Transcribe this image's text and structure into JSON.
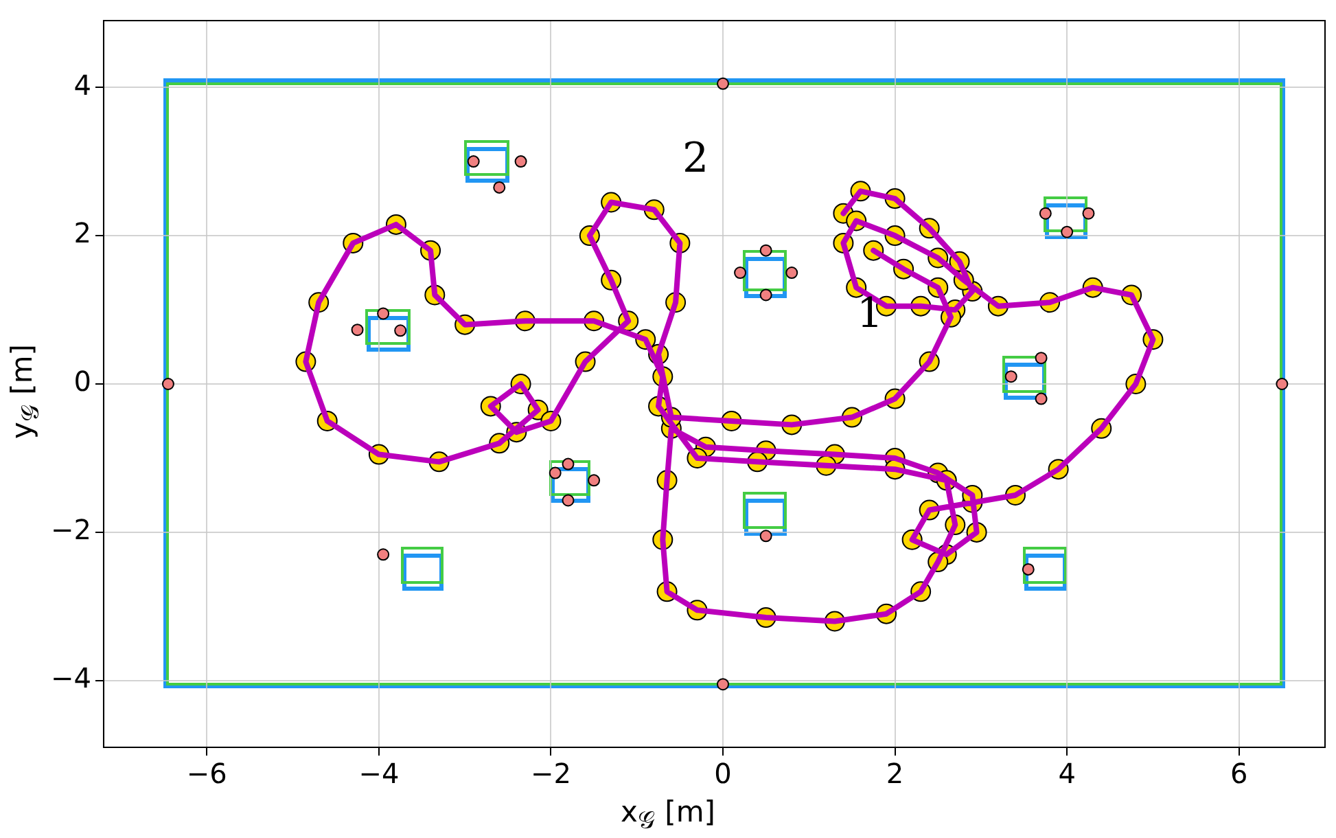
{
  "chart_data": {
    "type": "scatter",
    "xlabel": "x$_{𝒢}$ [m]",
    "ylabel": "y$_{𝒢}$ [m]",
    "xlim": [
      -7.2,
      7.0
    ],
    "ylim": [
      -4.9,
      4.9
    ],
    "xticks": [
      {
        "value": -6,
        "label": "−6"
      },
      {
        "value": -4,
        "label": "−4"
      },
      {
        "value": -2,
        "label": "−2"
      },
      0,
      2,
      4,
      6
    ],
    "yticks": [
      {
        "value": -4,
        "label": "−4"
      },
      {
        "value": -2,
        "label": "−2"
      },
      0,
      2,
      4
    ],
    "grid": true,
    "legend": false,
    "annotations": [
      "1",
      "2"
    ],
    "series": [
      {
        "type": "scatter",
        "marker": "circle",
        "color": "#ffd700",
        "x": [
          1.4,
          1.6,
          2.0,
          2.4,
          2.75,
          2.9,
          2.7,
          2.3,
          1.9,
          1.55,
          1.4,
          1.55,
          2.0,
          2.5,
          2.8,
          3.2,
          3.8,
          4.3,
          4.75,
          5.0,
          4.8,
          4.4,
          3.9,
          3.4,
          2.9,
          2.4,
          2.2,
          2.6,
          2.95,
          2.9,
          2.5,
          2.0,
          1.3,
          0.5,
          -0.2,
          -0.6,
          -0.65,
          -0.7,
          -0.65,
          -0.3,
          0.5,
          1.3,
          1.9,
          2.3,
          2.5,
          2.7,
          2.6,
          2.0,
          1.2,
          0.4,
          -0.3,
          -0.75,
          -0.7,
          -0.9,
          -1.5,
          -2.3,
          -3.0,
          -3.35,
          -3.4,
          -3.8,
          -4.3,
          -4.7,
          -4.85,
          -4.6,
          -4.0,
          -3.3,
          -2.6,
          -2.15,
          -2.35,
          -2.7,
          -2.4,
          -2.0,
          -1.6,
          -1.1,
          -1.3,
          -1.55,
          -1.3,
          -0.8,
          -0.5,
          -0.55,
          -0.75,
          -0.6,
          0.1,
          0.8,
          1.5,
          2.0,
          2.4,
          2.65,
          2.5,
          2.1,
          1.75
        ],
        "values": [
          2.3,
          2.6,
          2.5,
          2.1,
          1.65,
          1.25,
          1.0,
          1.05,
          1.05,
          1.3,
          1.9,
          2.2,
          2.0,
          1.7,
          1.4,
          1.05,
          1.1,
          1.3,
          1.2,
          0.6,
          0.0,
          -0.6,
          -1.15,
          -1.5,
          -1.6,
          -1.7,
          -2.1,
          -2.3,
          -2.0,
          -1.5,
          -1.2,
          -1.0,
          -0.95,
          -0.9,
          -0.85,
          -0.6,
          -1.3,
          -2.1,
          -2.8,
          -3.05,
          -3.15,
          -3.2,
          -3.1,
          -2.8,
          -2.4,
          -1.9,
          -1.3,
          -1.15,
          -1.1,
          -1.05,
          -1.0,
          -0.3,
          0.1,
          0.6,
          0.85,
          0.85,
          0.8,
          1.2,
          1.8,
          2.15,
          1.9,
          1.1,
          0.3,
          -0.5,
          -0.95,
          -1.05,
          -0.8,
          -0.35,
          0.0,
          -0.3,
          -0.65,
          -0.5,
          0.3,
          0.85,
          1.4,
          2.0,
          2.45,
          2.35,
          1.9,
          1.1,
          0.4,
          -0.45,
          -0.5,
          -0.55,
          -0.45,
          -0.2,
          0.3,
          0.9,
          1.3,
          1.55,
          1.8
        ]
      },
      {
        "type": "line",
        "marker": "none",
        "color": "#bb00bb",
        "x": [
          1.4,
          1.6,
          2.0,
          2.4,
          2.75,
          2.9,
          2.7,
          2.3,
          1.9,
          1.55,
          1.4,
          1.55,
          2.0,
          2.5,
          2.8,
          3.2,
          3.8,
          4.3,
          4.75,
          5.0,
          4.8,
          4.4,
          3.9,
          3.4,
          2.9,
          2.4,
          2.2,
          2.6,
          2.95,
          2.9,
          2.5,
          2.0,
          1.3,
          0.5,
          -0.2,
          -0.6,
          -0.65,
          -0.7,
          -0.65,
          -0.3,
          0.5,
          1.3,
          1.9,
          2.3,
          2.5,
          2.7,
          2.6,
          2.0,
          1.2,
          0.4,
          -0.3,
          -0.75,
          -0.7,
          -0.9,
          -1.5,
          -2.3,
          -3.0,
          -3.35,
          -3.4,
          -3.8,
          -4.3,
          -4.7,
          -4.85,
          -4.6,
          -4.0,
          -3.3,
          -2.6,
          -2.15,
          -2.35,
          -2.7,
          -2.4,
          -2.0,
          -1.6,
          -1.1,
          -1.3,
          -1.55,
          -1.3,
          -0.8,
          -0.5,
          -0.55,
          -0.75,
          -0.6,
          0.1,
          0.8,
          1.5,
          2.0,
          2.4,
          2.65,
          2.5,
          2.1,
          1.75
        ],
        "values": [
          2.3,
          2.6,
          2.5,
          2.1,
          1.65,
          1.25,
          1.0,
          1.05,
          1.05,
          1.3,
          1.9,
          2.2,
          2.0,
          1.7,
          1.4,
          1.05,
          1.1,
          1.3,
          1.2,
          0.6,
          0.0,
          -0.6,
          -1.15,
          -1.5,
          -1.6,
          -1.7,
          -2.1,
          -2.3,
          -2.0,
          -1.5,
          -1.2,
          -1.0,
          -0.95,
          -0.9,
          -0.85,
          -0.6,
          -1.3,
          -2.1,
          -2.8,
          -3.05,
          -3.15,
          -3.2,
          -3.1,
          -2.8,
          -2.4,
          -1.9,
          -1.3,
          -1.15,
          -1.1,
          -1.05,
          -1.0,
          -0.3,
          0.1,
          0.6,
          0.85,
          0.85,
          0.8,
          1.2,
          1.8,
          2.15,
          1.9,
          1.1,
          0.3,
          -0.5,
          -0.95,
          -1.05,
          -0.8,
          -0.35,
          0.0,
          -0.3,
          -0.65,
          -0.5,
          0.3,
          0.85,
          1.4,
          2.0,
          2.45,
          2.35,
          1.9,
          1.1,
          0.4,
          -0.45,
          -0.5,
          -0.55,
          -0.45,
          -0.2,
          0.3,
          0.9,
          1.3,
          1.55,
          1.8
        ]
      },
      {
        "type": "scatter",
        "marker": "circle",
        "color": "#f08080",
        "x": [
          0,
          -6.45,
          6.5,
          0,
          -2.9,
          -2.35,
          -2.6,
          -3.95,
          -4.25,
          -3.75,
          -1.95,
          -1.8,
          -1.5,
          -1.8,
          -3.95,
          0.5,
          0.2,
          0.8,
          0.5,
          0.5,
          3.7,
          3.35,
          3.7,
          3.75,
          4.25,
          4.0,
          3.55
        ],
        "values": [
          4.05,
          0,
          0,
          -4.05,
          3.0,
          3.0,
          2.65,
          0.95,
          0.73,
          0.72,
          -1.2,
          -1.08,
          -1.3,
          -1.57,
          -2.3,
          1.8,
          1.5,
          1.5,
          1.2,
          -2.05,
          0.35,
          0.1,
          -0.2,
          2.3,
          2.3,
          2.05,
          -2.5
        ]
      }
    ]
  }
}
